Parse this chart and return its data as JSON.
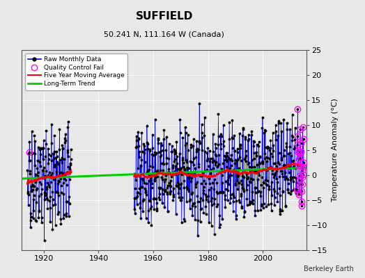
{
  "title": "SUFFIELD",
  "subtitle": "50.241 N, 111.164 W (Canada)",
  "ylabel": "Temperature Anomaly (°C)",
  "credit": "Berkeley Earth",
  "xlim": [
    1912,
    2016
  ],
  "ylim": [
    -15,
    25
  ],
  "yticks": [
    -15,
    -10,
    -5,
    0,
    5,
    10,
    15,
    20,
    25
  ],
  "xticks": [
    1920,
    1940,
    1960,
    1980,
    2000
  ],
  "bg_color": "#e8e8e8",
  "plot_bg_color": "#e8e8e8",
  "raw_line_color": "#0000ff",
  "raw_marker_color": "#000000",
  "qc_color": "#ff00ff",
  "ma_color": "#ff0000",
  "trend_color": "#00cc00",
  "seed": 42,
  "data1_start": 1914,
  "data1_end": 1930,
  "data2_start": 1953,
  "data2_end": 2015,
  "trend_x": [
    1912,
    2016
  ],
  "trend_y": [
    -0.7,
    1.5
  ],
  "amplitude": 5.5,
  "noise_std": 3.0
}
